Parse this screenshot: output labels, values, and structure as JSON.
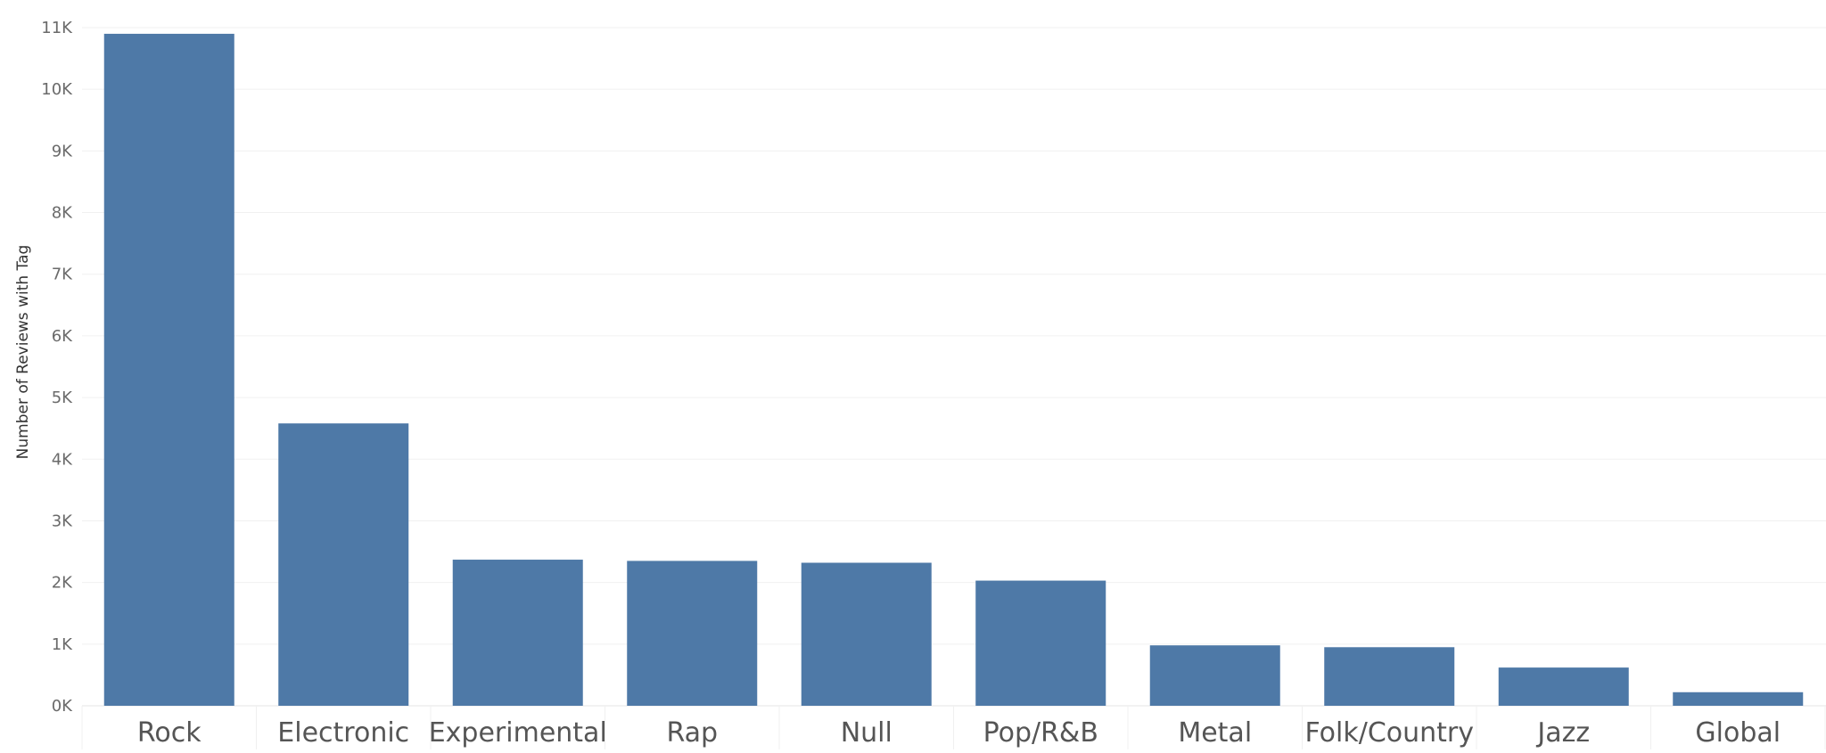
{
  "chart_data": {
    "type": "bar",
    "title": "",
    "xlabel": "",
    "ylabel": "Number of Reviews with Tag",
    "categories": [
      "Rock",
      "Electronic",
      "Experimental",
      "Rap",
      "Null",
      "Pop/R&B",
      "Metal",
      "Folk/Country",
      "Jazz",
      "Global"
    ],
    "values": [
      10900,
      4580,
      2370,
      2350,
      2320,
      2030,
      980,
      950,
      620,
      220
    ],
    "ylim": [
      0,
      11000
    ],
    "yticks": [
      0,
      1000,
      2000,
      3000,
      4000,
      5000,
      6000,
      7000,
      8000,
      9000,
      10000,
      11000
    ],
    "ytick_labels": [
      "0K",
      "1K",
      "2K",
      "3K",
      "4K",
      "5K",
      "6K",
      "7K",
      "8K",
      "9K",
      "10K",
      "11K"
    ],
    "grid": true,
    "bar_color": "#4e79a7",
    "gridline_color": "#f0f0f0"
  }
}
